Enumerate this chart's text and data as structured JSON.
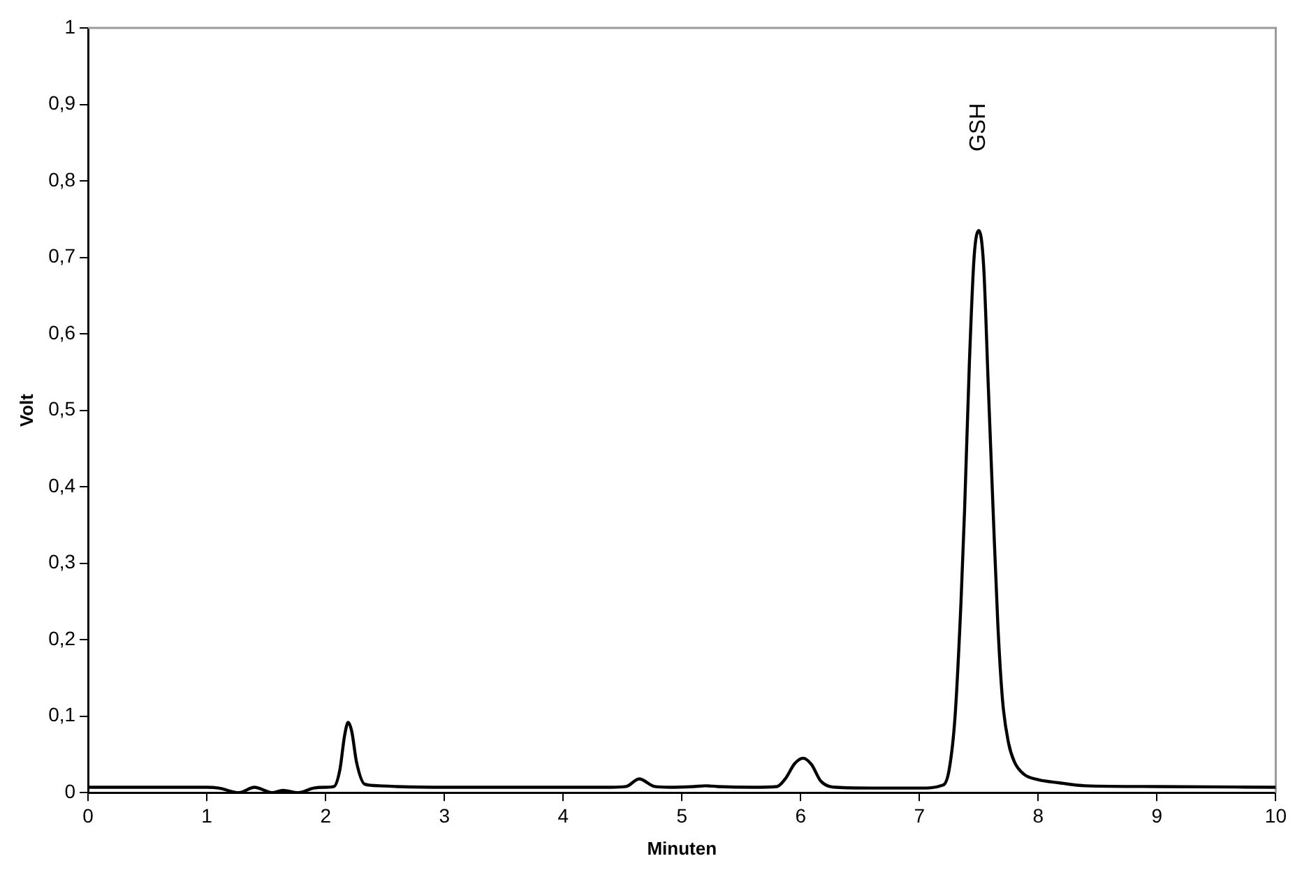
{
  "chart_data": {
    "type": "line",
    "xlabel": "Minuten",
    "ylabel": "Volt",
    "xlim": [
      0,
      10
    ],
    "ylim": [
      0,
      1
    ],
    "xticks": [
      0,
      1,
      2,
      3,
      4,
      5,
      6,
      7,
      8,
      9,
      10
    ],
    "yticks": [
      0,
      {
        "value": 0.1,
        "label": "0,1"
      },
      {
        "value": 0.2,
        "label": "0,2"
      },
      {
        "value": 0.3,
        "label": "0,3"
      },
      {
        "value": 0.4,
        "label": "0,4"
      },
      {
        "value": 0.5,
        "label": "0,5"
      },
      {
        "value": 0.6,
        "label": "0,6"
      },
      {
        "value": 0.7,
        "label": "0,7"
      },
      {
        "value": 0.8,
        "label": "0,8"
      },
      {
        "value": 0.9,
        "label": "0,9"
      },
      1
    ],
    "grid": false,
    "legend": false,
    "marker": "none",
    "line_style": "solid",
    "annotations": [
      "GSH"
    ],
    "series": [
      {
        "color": "#000000",
        "x": [
          0,
          0.5,
          1.0,
          1.1,
          1.27,
          1.4,
          1.55,
          1.64,
          1.77,
          1.9,
          2.0,
          2.07,
          2.12,
          2.16,
          2.19,
          2.22,
          2.26,
          2.33,
          2.45,
          2.6,
          3.0,
          3.5,
          4.0,
          4.4,
          4.53,
          4.64,
          4.77,
          4.9,
          5.1,
          5.2,
          5.3,
          5.6,
          5.8,
          5.87,
          5.95,
          6.02,
          6.09,
          6.17,
          6.3,
          6.6,
          7.0,
          7.2,
          7.25,
          7.3,
          7.35,
          7.38,
          7.42,
          7.46,
          7.5,
          7.54,
          7.58,
          7.62,
          7.66,
          7.7,
          7.75,
          7.8,
          7.88,
          8.0,
          8.17,
          8.4,
          9.0,
          10
        ],
        "values": [
          0.007,
          0.007,
          0.007,
          0.006,
          0,
          0.007,
          0,
          0.003,
          0,
          0.006,
          0.007,
          0.008,
          0.03,
          0.075,
          0.092,
          0.08,
          0.04,
          0.011,
          0.009,
          0.008,
          0.007,
          0.007,
          0.007,
          0.007,
          0.008,
          0.018,
          0.008,
          0.007,
          0.008,
          0.009,
          0.008,
          0.007,
          0.008,
          0.018,
          0.038,
          0.045,
          0.037,
          0.015,
          0.007,
          0.006,
          0.006,
          0.01,
          0.03,
          0.1,
          0.25,
          0.37,
          0.56,
          0.7,
          0.735,
          0.69,
          0.53,
          0.37,
          0.22,
          0.12,
          0.065,
          0.04,
          0.024,
          0.017,
          0.013,
          0.009,
          0.008,
          0.007
        ]
      }
    ]
  }
}
